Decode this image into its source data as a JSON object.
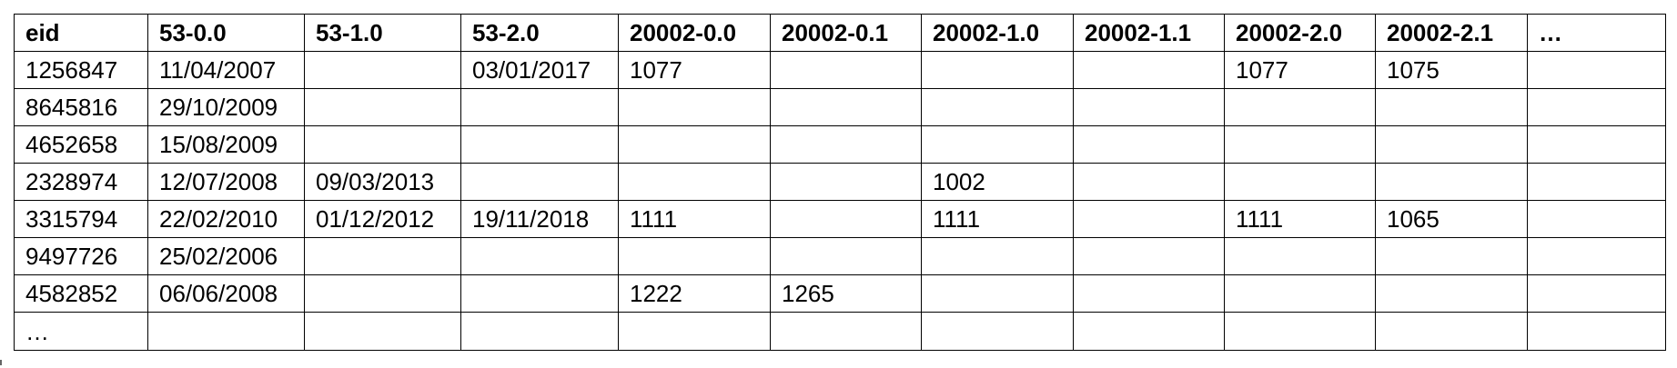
{
  "table": {
    "headers": [
      "eid",
      "53-0.0",
      "53-1.0",
      "53-2.0",
      "20002-0.0",
      "20002-0.1",
      "20002-1.0",
      "20002-1.1",
      "20002-2.0",
      "20002-2.1",
      "…"
    ],
    "rows": [
      [
        "1256847",
        "11/04/2007",
        "",
        "03/01/2017",
        "1077",
        "",
        "",
        "",
        "1077",
        "1075",
        ""
      ],
      [
        "8645816",
        "29/10/2009",
        "",
        "",
        "",
        "",
        "",
        "",
        "",
        "",
        ""
      ],
      [
        "4652658",
        "15/08/2009",
        "",
        "",
        "",
        "",
        "",
        "",
        "",
        "",
        ""
      ],
      [
        "2328974",
        "12/07/2008",
        "09/03/2013",
        "",
        "",
        "",
        "1002",
        "",
        "",
        "",
        ""
      ],
      [
        "3315794",
        "22/02/2010",
        "01/12/2012",
        "19/11/2018",
        "1111",
        "",
        "1111",
        "",
        "1111",
        "1065",
        ""
      ],
      [
        "9497726",
        "25/02/2006",
        "",
        "",
        "",
        "",
        "",
        "",
        "",
        "",
        ""
      ],
      [
        "4582852",
        "06/06/2008",
        "",
        "",
        "1222",
        "1265",
        "",
        "",
        "",
        "",
        ""
      ],
      [
        "…",
        "",
        "",
        "",
        "",
        "",
        "",
        "",
        "",
        "",
        ""
      ]
    ]
  }
}
